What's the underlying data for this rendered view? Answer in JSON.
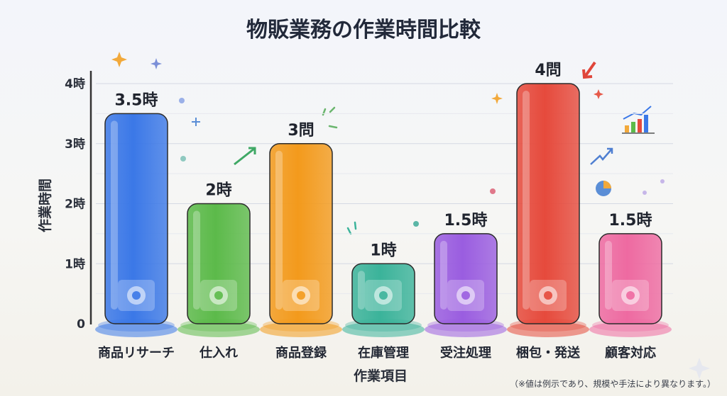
{
  "chart_data": {
    "type": "bar",
    "title": "物販業務の作業時間比較",
    "ylabel": "作業時間",
    "xlabel": "作業項目",
    "ylim": [
      0,
      4
    ],
    "yticks": [
      "0",
      "1時",
      "2時",
      "3時",
      "4時"
    ],
    "categories": [
      "商品リサーチ",
      "仕入れ",
      "商品登録",
      "在庫管理",
      "受注処理",
      "梱包・発送",
      "顧客対応"
    ],
    "values": [
      3.5,
      2,
      3,
      1,
      1.5,
      4,
      1.5
    ],
    "data_labels": [
      "3.5時",
      "2時",
      "3問",
      "1時",
      "1.5時",
      "4問",
      "1.5時"
    ],
    "colors": [
      "#3b78e7",
      "#5cba4a",
      "#f39a1c",
      "#3bb39a",
      "#9a5de0",
      "#e64a3c",
      "#ee6aa1"
    ],
    "icons": [
      "globe-search-icon",
      "delivery-truck-icon",
      "camera-screen-icon",
      "warehouse-icon",
      "shopping-cart-icon",
      "package-truck-icon",
      "support-agent-icon"
    ],
    "grid": true,
    "note": "（※値は例示であり、規模や手法により異なります。）"
  }
}
